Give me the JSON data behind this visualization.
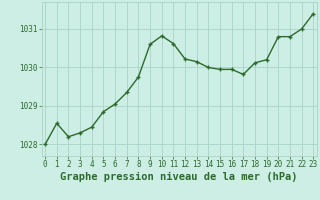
{
  "x": [
    0,
    1,
    2,
    3,
    4,
    5,
    6,
    7,
    8,
    9,
    10,
    11,
    12,
    13,
    14,
    15,
    16,
    17,
    18,
    19,
    20,
    21,
    22,
    23
  ],
  "y": [
    1028.0,
    1028.55,
    1028.2,
    1028.3,
    1028.45,
    1028.85,
    1029.05,
    1029.35,
    1029.75,
    1030.6,
    1030.82,
    1030.62,
    1030.22,
    1030.15,
    1030.0,
    1029.95,
    1029.95,
    1029.82,
    1030.12,
    1030.2,
    1030.8,
    1030.8,
    1031.0,
    1031.4
  ],
  "line_color": "#2d6a2d",
  "marker_color": "#2d6a2d",
  "bg_color": "#cceee4",
  "grid_color": "#aad4c8",
  "xlabel": "Graphe pression niveau de la mer (hPa)",
  "xlabel_color": "#2d6a2d",
  "tick_color": "#2d6a2d",
  "ylim": [
    1027.7,
    1031.7
  ],
  "yticks": [
    1028,
    1029,
    1030,
    1031
  ],
  "xticks": [
    0,
    1,
    2,
    3,
    4,
    5,
    6,
    7,
    8,
    9,
    10,
    11,
    12,
    13,
    14,
    15,
    16,
    17,
    18,
    19,
    20,
    21,
    22,
    23
  ],
  "tick_fontsize": 5.5,
  "xlabel_fontsize": 7.5,
  "linewidth": 1.0,
  "markersize": 3.0
}
